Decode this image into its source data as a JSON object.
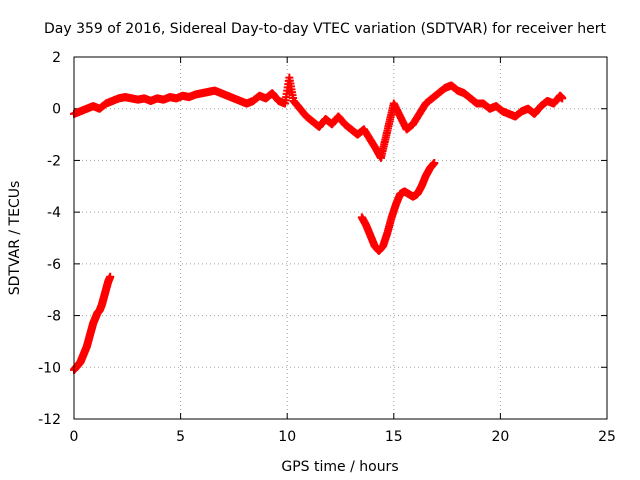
{
  "chart_data": {
    "type": "scatter",
    "title": "Day 359 of 2016, Sidereal Day-to-day VTEC variation (SDTVAR) for receiver hert",
    "xlabel": "GPS time / hours",
    "ylabel": "SDTVAR / TECUs",
    "xlim": [
      0,
      25
    ],
    "ylim": [
      -12,
      2
    ],
    "xticks": [
      0,
      5,
      10,
      15,
      20,
      25
    ],
    "yticks": [
      -12,
      -10,
      -8,
      -6,
      -4,
      -2,
      0,
      2
    ],
    "grid": true,
    "marker": "plus",
    "series": [
      {
        "name": "satellite-track-main",
        "color": "#ff0000",
        "points": [
          [
            0.0,
            -0.2
          ],
          [
            0.3,
            -0.1
          ],
          [
            0.6,
            0.0
          ],
          [
            0.9,
            0.1
          ],
          [
            1.2,
            0.0
          ],
          [
            1.5,
            0.2
          ],
          [
            1.8,
            0.3
          ],
          [
            2.1,
            0.4
          ],
          [
            2.4,
            0.45
          ],
          [
            2.7,
            0.4
          ],
          [
            3.0,
            0.35
          ],
          [
            3.3,
            0.4
          ],
          [
            3.6,
            0.3
          ],
          [
            3.9,
            0.4
          ],
          [
            4.2,
            0.35
          ],
          [
            4.5,
            0.45
          ],
          [
            4.8,
            0.4
          ],
          [
            5.1,
            0.5
          ],
          [
            5.4,
            0.45
          ],
          [
            5.7,
            0.55
          ],
          [
            6.0,
            0.6
          ],
          [
            6.3,
            0.65
          ],
          [
            6.6,
            0.7
          ],
          [
            6.9,
            0.6
          ],
          [
            7.2,
            0.5
          ],
          [
            7.5,
            0.4
          ],
          [
            7.8,
            0.3
          ],
          [
            8.1,
            0.2
          ],
          [
            8.4,
            0.3
          ],
          [
            8.7,
            0.5
          ],
          [
            9.0,
            0.4
          ],
          [
            9.3,
            0.6
          ],
          [
            9.6,
            0.3
          ],
          [
            9.9,
            0.2
          ],
          [
            10.1,
            1.2
          ],
          [
            10.3,
            0.3
          ],
          [
            10.6,
            0.0
          ],
          [
            10.9,
            -0.3
          ],
          [
            11.2,
            -0.5
          ],
          [
            11.5,
            -0.7
          ],
          [
            11.8,
            -0.4
          ],
          [
            12.1,
            -0.6
          ],
          [
            12.4,
            -0.3
          ],
          [
            12.7,
            -0.6
          ],
          [
            13.0,
            -0.8
          ],
          [
            13.3,
            -1.0
          ],
          [
            13.6,
            -0.8
          ],
          [
            13.9,
            -1.2
          ],
          [
            14.2,
            -1.6
          ],
          [
            14.4,
            -1.9
          ],
          [
            14.6,
            -1.2
          ],
          [
            14.8,
            -0.5
          ],
          [
            15.0,
            0.2
          ],
          [
            15.3,
            -0.3
          ],
          [
            15.6,
            -0.8
          ],
          [
            15.9,
            -0.6
          ],
          [
            16.2,
            -0.2
          ],
          [
            16.5,
            0.2
          ],
          [
            16.8,
            0.4
          ],
          [
            17.1,
            0.6
          ],
          [
            17.4,
            0.8
          ],
          [
            17.7,
            0.9
          ],
          [
            18.0,
            0.7
          ],
          [
            18.3,
            0.6
          ],
          [
            18.6,
            0.4
          ],
          [
            18.9,
            0.2
          ],
          [
            19.2,
            0.2
          ],
          [
            19.5,
            0.0
          ],
          [
            19.8,
            0.1
          ],
          [
            20.1,
            -0.1
          ],
          [
            20.4,
            -0.2
          ],
          [
            20.7,
            -0.3
          ],
          [
            21.0,
            -0.1
          ],
          [
            21.3,
            0.0
          ],
          [
            21.6,
            -0.2
          ],
          [
            21.9,
            0.1
          ],
          [
            22.2,
            0.3
          ],
          [
            22.5,
            0.2
          ],
          [
            22.8,
            0.5
          ],
          [
            22.9,
            0.4
          ]
        ]
      },
      {
        "name": "satellite-track-early",
        "color": "#ff0000",
        "points": [
          [
            0.0,
            -10.1
          ],
          [
            0.1,
            -10.0
          ],
          [
            0.2,
            -9.9
          ],
          [
            0.3,
            -9.8
          ],
          [
            0.4,
            -9.6
          ],
          [
            0.5,
            -9.4
          ],
          [
            0.6,
            -9.2
          ],
          [
            0.7,
            -8.9
          ],
          [
            0.8,
            -8.6
          ],
          [
            0.9,
            -8.3
          ],
          [
            1.0,
            -8.1
          ],
          [
            1.1,
            -7.9
          ],
          [
            1.2,
            -7.8
          ],
          [
            1.3,
            -7.6
          ],
          [
            1.4,
            -7.3
          ],
          [
            1.5,
            -7.0
          ],
          [
            1.6,
            -6.7
          ],
          [
            1.7,
            -6.5
          ]
        ]
      },
      {
        "name": "satellite-track-afternoon",
        "color": "#ff0000",
        "points": [
          [
            13.5,
            -4.2
          ],
          [
            13.7,
            -4.5
          ],
          [
            13.9,
            -4.9
          ],
          [
            14.1,
            -5.3
          ],
          [
            14.3,
            -5.5
          ],
          [
            14.5,
            -5.3
          ],
          [
            14.7,
            -4.8
          ],
          [
            14.9,
            -4.2
          ],
          [
            15.1,
            -3.7
          ],
          [
            15.3,
            -3.3
          ],
          [
            15.5,
            -3.2
          ],
          [
            15.7,
            -3.3
          ],
          [
            15.9,
            -3.4
          ],
          [
            16.1,
            -3.3
          ],
          [
            16.3,
            -3.0
          ],
          [
            16.5,
            -2.6
          ],
          [
            16.7,
            -2.3
          ],
          [
            16.9,
            -2.1
          ]
        ]
      }
    ]
  }
}
